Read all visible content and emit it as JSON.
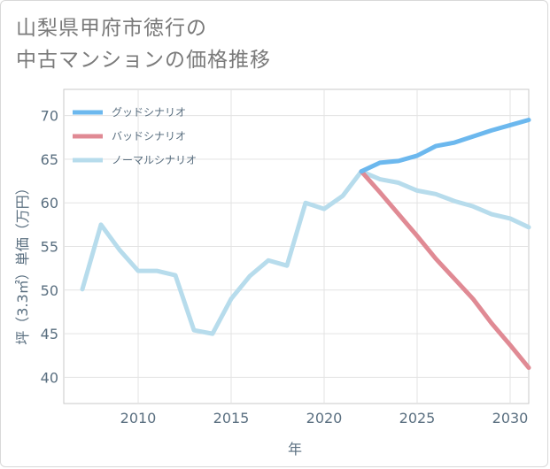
{
  "title": {
    "line1": "山梨県甲府市徳行の",
    "line2": "中古マンションの価格推移"
  },
  "chart_data": {
    "type": "line",
    "xlabel": "年",
    "ylabel": "坪（3.3㎡）単価（万円）",
    "xlim": [
      2006,
      2031
    ],
    "ylim": [
      37,
      73
    ],
    "x_ticks": [
      2010,
      2015,
      2020,
      2025,
      2030
    ],
    "y_ticks": [
      40,
      45,
      50,
      55,
      60,
      65,
      70
    ],
    "x_tick_labels": [
      "2010",
      "2015",
      "2020",
      "2025",
      "2030"
    ],
    "y_tick_labels": [
      "40",
      "45",
      "50",
      "55",
      "60",
      "65",
      "70"
    ],
    "grid": true,
    "legend_position": "top-left",
    "series": [
      {
        "name": "グッドシナリオ",
        "color": "#6cb8ee",
        "x": [
          2022,
          2023,
          2024,
          2025,
          2026,
          2027,
          2028,
          2029,
          2030,
          2031
        ],
        "values": [
          63.6,
          64.6,
          64.8,
          65.4,
          66.5,
          66.9,
          67.6,
          68.3,
          68.9,
          69.5
        ]
      },
      {
        "name": "バッドシナリオ",
        "color": "#e08a94",
        "x": [
          2022,
          2023,
          2024,
          2025,
          2026,
          2027,
          2028,
          2029,
          2030,
          2031
        ],
        "values": [
          63.6,
          61.2,
          58.7,
          56.2,
          53.6,
          51.3,
          49.0,
          46.2,
          43.7,
          41.1
        ]
      },
      {
        "name": "ノーマルシナリオ",
        "color": "#b7dcec",
        "x": [
          2007,
          2008,
          2009,
          2010,
          2011,
          2012,
          2013,
          2014,
          2015,
          2016,
          2017,
          2018,
          2019,
          2020,
          2021,
          2022,
          2023,
          2024,
          2025,
          2026,
          2027,
          2028,
          2029,
          2030,
          2031
        ],
        "values": [
          50.1,
          57.5,
          54.6,
          52.2,
          52.2,
          51.7,
          45.4,
          45.0,
          49.0,
          51.6,
          53.4,
          52.8,
          60.0,
          59.3,
          60.8,
          63.6,
          62.7,
          62.3,
          61.4,
          61.0,
          60.2,
          59.6,
          58.7,
          58.2,
          57.2
        ]
      }
    ]
  }
}
